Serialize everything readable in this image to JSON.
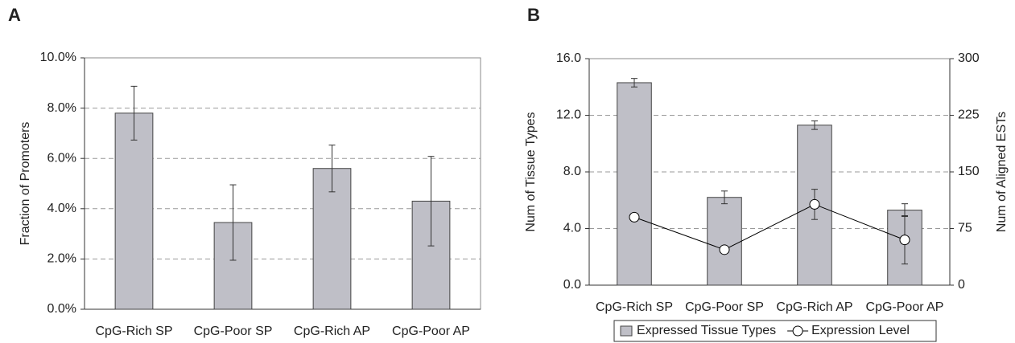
{
  "chart_data": [
    {
      "type": "bar",
      "title": "A",
      "y_label": "Fraction of Promoters",
      "categories": [
        "CpG-Rich SP",
        "CpG-Poor SP",
        "CpG-Rich AP",
        "CpG-Poor AP"
      ],
      "values": [
        7.8,
        3.45,
        5.6,
        4.3
      ],
      "errors": [
        1.07,
        1.5,
        0.93,
        1.78
      ],
      "color": "#bfbfc7",
      "ylim": [
        0,
        10
      ],
      "yticks": [
        {
          "value": 0,
          "label": "0.0%"
        },
        {
          "value": 2,
          "label": "2.0%"
        },
        {
          "value": 4,
          "label": "4.0%"
        },
        {
          "value": 6,
          "label": "6.0%"
        },
        {
          "value": 8,
          "label": "8.0%"
        },
        {
          "value": 10,
          "label": "10.0%"
        }
      ],
      "grid": true
    },
    {
      "type": "combo",
      "title": "B",
      "y_label": "Num of Tissue Types",
      "y2_label": "Num of Aligned ESTs",
      "categories": [
        "CpG-Rich SP",
        "CpG-Poor SP",
        "CpG-Rich AP",
        "CpG-Poor AP"
      ],
      "series": [
        {
          "name": "Expressed Tissue Types",
          "type": "bar",
          "color": "#bfbfc7",
          "values": [
            14.3,
            6.2,
            11.3,
            5.3
          ],
          "errors": [
            0.3,
            0.45,
            0.3,
            0.45
          ]
        },
        {
          "name": "Expression Level",
          "type": "line",
          "axis": "y2",
          "color": "#000000",
          "values": [
            90,
            47,
            107,
            60
          ],
          "errors": [
            3,
            5,
            20,
            32
          ]
        }
      ],
      "ylim": [
        0,
        16
      ],
      "yticks": [
        {
          "value": 0,
          "label": "0.0"
        },
        {
          "value": 4,
          "label": "4.0"
        },
        {
          "value": 8,
          "label": "8.0"
        },
        {
          "value": 12,
          "label": "12.0"
        },
        {
          "value": 16,
          "label": "16.0"
        }
      ],
      "y2lim": [
        0,
        300
      ],
      "y2ticks": [
        0,
        75,
        150,
        225,
        300
      ],
      "grid": true,
      "legend": "bottom"
    }
  ]
}
